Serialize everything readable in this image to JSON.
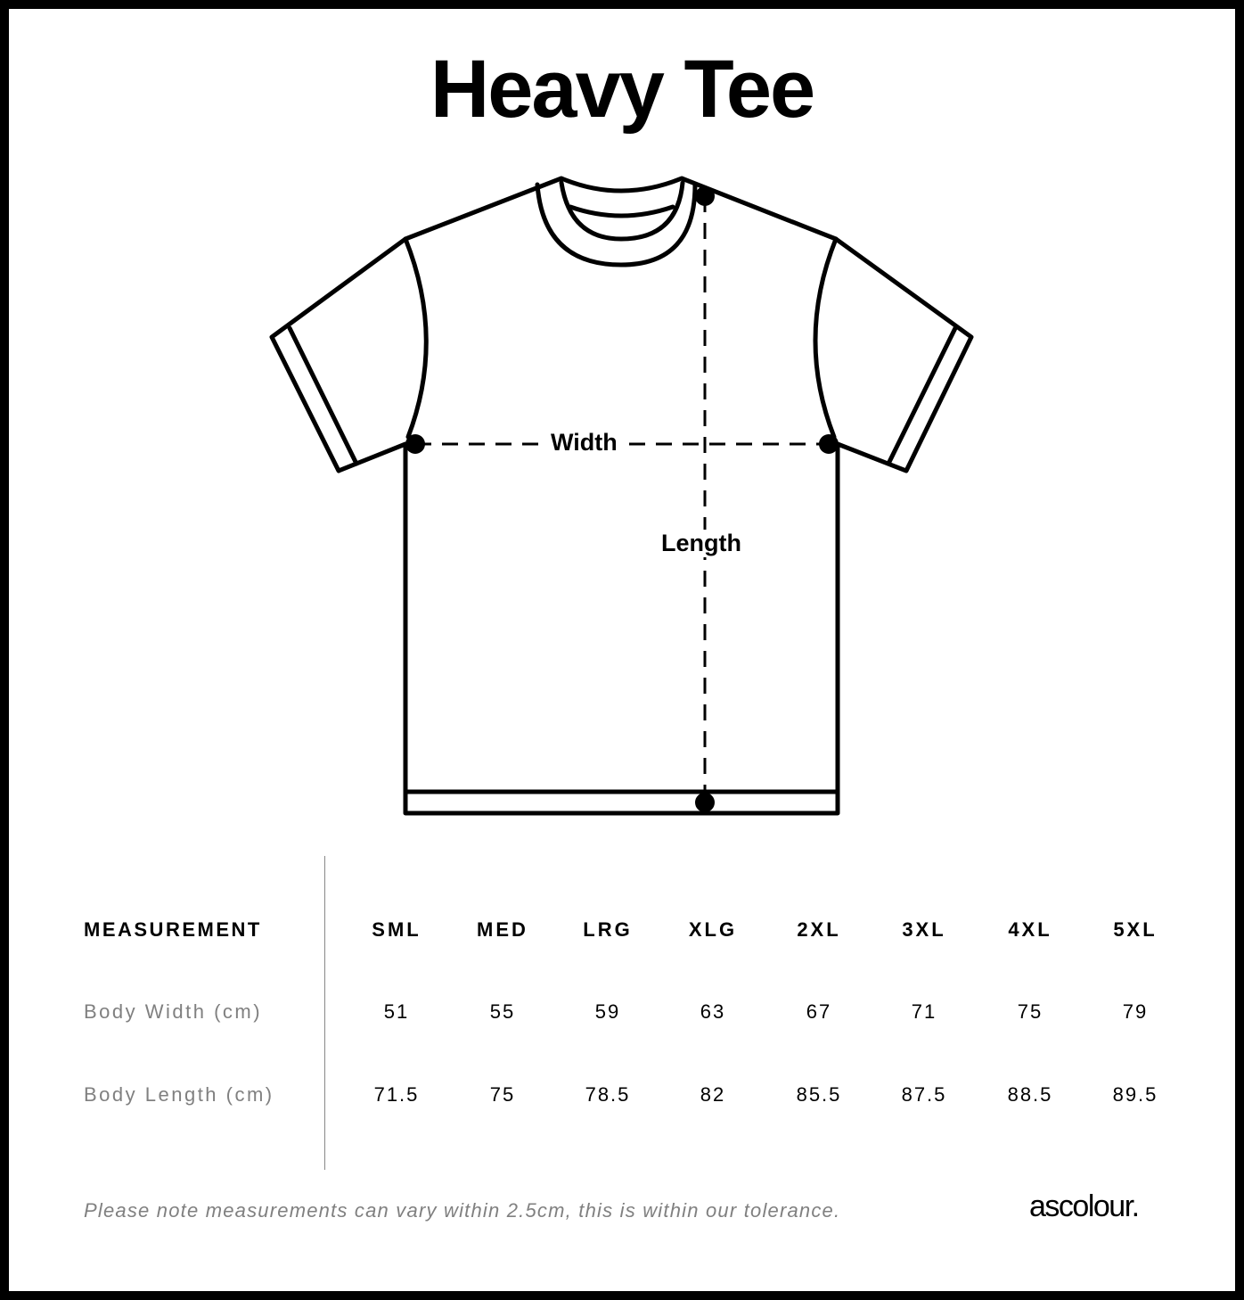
{
  "title": "Heavy Tee",
  "diagram": {
    "width_label": "Width",
    "length_label": "Length"
  },
  "table": {
    "header_label": "MEASUREMENT",
    "sizes": [
      "SML",
      "MED",
      "LRG",
      "XLG",
      "2XL",
      "3XL",
      "4XL",
      "5XL"
    ],
    "rows": [
      {
        "label": "Body Width (cm)",
        "values": [
          "51",
          "55",
          "59",
          "63",
          "67",
          "71",
          "75",
          "79"
        ]
      },
      {
        "label": "Body Length (cm)",
        "values": [
          "71.5",
          "75",
          "78.5",
          "82",
          "85.5",
          "87.5",
          "88.5",
          "89.5"
        ]
      }
    ]
  },
  "note": "Please note measurements can vary within 2.5cm, this is within our tolerance.",
  "brand": "ascolour."
}
